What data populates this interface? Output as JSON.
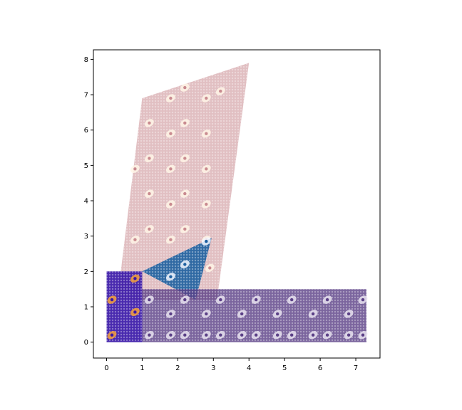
{
  "chart_data": {
    "type": "scatter",
    "title": "",
    "xlabel": "",
    "ylabel": "",
    "xlim": [
      -0.37,
      7.68
    ],
    "ylim": [
      -0.45,
      8.27
    ],
    "x_ticks": [
      0,
      1,
      2,
      3,
      4,
      5,
      6,
      7
    ],
    "y_ticks": [
      0,
      1,
      2,
      3,
      4,
      5,
      6,
      7,
      8
    ],
    "x_tick_labels": [
      "0",
      "1",
      "2",
      "3",
      "4",
      "5",
      "6",
      "7"
    ],
    "y_tick_labels": [
      "0",
      "1",
      "2",
      "3",
      "4",
      "5",
      "6",
      "7",
      "8"
    ],
    "grid": false,
    "legend": "none",
    "regions": [
      {
        "colormap": "pink",
        "shape": "parallelogram",
        "corners": [
          [
            0.3,
            1.2
          ],
          [
            3.1,
            1.2
          ],
          [
            4.0,
            7.9
          ],
          [
            1.0,
            6.9
          ]
        ],
        "base_color": "#c98b90",
        "highlight_color": "#fff4e6",
        "opacity": 0.55,
        "hotspots": [
          [
            1.8,
            6.9
          ],
          [
            2.2,
            7.2
          ],
          [
            3.2,
            7.1
          ],
          [
            2.8,
            6.9
          ],
          [
            1.2,
            6.2
          ],
          [
            1.8,
            5.9
          ],
          [
            2.2,
            6.2
          ],
          [
            2.8,
            5.9
          ],
          [
            0.8,
            4.9
          ],
          [
            1.8,
            4.9
          ],
          [
            1.2,
            5.2
          ],
          [
            2.2,
            5.2
          ],
          [
            2.8,
            4.9
          ],
          [
            1.2,
            4.2
          ],
          [
            1.8,
            3.9
          ],
          [
            2.2,
            4.2
          ],
          [
            2.8,
            3.9
          ],
          [
            0.8,
            2.9
          ],
          [
            1.2,
            3.2
          ],
          [
            1.8,
            2.9
          ],
          [
            2.2,
            3.2
          ],
          [
            2.8,
            2.9
          ],
          [
            2.9,
            2.1
          ]
        ]
      },
      {
        "colormap": "Blues_r",
        "shape": "triangle",
        "corners": [
          [
            1.0,
            2.0
          ],
          [
            2.95,
            2.95
          ],
          [
            2.5,
            1.2
          ]
        ],
        "base_color": "#1d5fa0",
        "highlight_color": "#f2f7ff",
        "opacity": 0.9,
        "hotspots": [
          [
            2.2,
            2.2
          ],
          [
            1.8,
            1.85
          ],
          [
            2.8,
            2.85
          ],
          [
            1.2,
            1.2
          ]
        ]
      },
      {
        "colormap": "magma",
        "shape": "rectangle",
        "corners": [
          [
            1.0,
            0.0
          ],
          [
            7.3,
            0.0
          ],
          [
            7.3,
            1.5
          ],
          [
            1.0,
            1.5
          ]
        ],
        "base_color": "#5a3f86",
        "highlight_color": "#e8e2ef",
        "opacity": 0.8,
        "hotspots": [
          [
            1.2,
            1.2
          ],
          [
            1.8,
            0.8
          ],
          [
            2.2,
            1.2
          ],
          [
            2.8,
            0.8
          ],
          [
            3.2,
            1.2
          ],
          [
            3.8,
            0.8
          ],
          [
            4.2,
            1.2
          ],
          [
            4.8,
            0.8
          ],
          [
            5.2,
            1.2
          ],
          [
            5.8,
            0.8
          ],
          [
            6.2,
            1.2
          ],
          [
            6.8,
            0.8
          ],
          [
            7.2,
            1.2
          ],
          [
            1.2,
            0.2
          ],
          [
            1.8,
            0.2
          ],
          [
            2.2,
            0.2
          ],
          [
            2.8,
            0.2
          ],
          [
            3.2,
            0.2
          ],
          [
            3.8,
            0.2
          ],
          [
            4.2,
            0.2
          ],
          [
            4.8,
            0.2
          ],
          [
            5.2,
            0.2
          ],
          [
            5.8,
            0.2
          ],
          [
            6.2,
            0.2
          ],
          [
            6.8,
            0.2
          ],
          [
            7.2,
            0.2
          ]
        ]
      },
      {
        "colormap": "plasma",
        "shape": "rectangle",
        "corners": [
          [
            0.0,
            0.0
          ],
          [
            1.0,
            0.0
          ],
          [
            1.0,
            2.0
          ],
          [
            0.0,
            2.0
          ]
        ],
        "base_color": "#3a18a8",
        "highlight_color": "#f6a13a",
        "opacity": 0.92,
        "hotspots": [
          [
            0.8,
            1.8
          ],
          [
            0.15,
            1.2
          ],
          [
            0.8,
            0.85
          ],
          [
            0.15,
            0.2
          ]
        ]
      }
    ]
  }
}
